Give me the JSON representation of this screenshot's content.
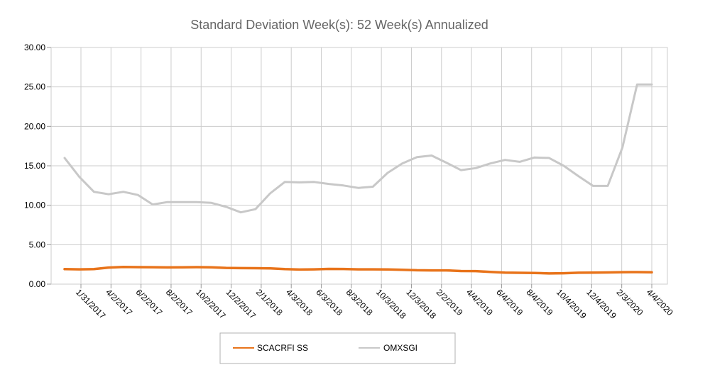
{
  "chart_data": {
    "type": "line",
    "title": "Standard Deviation Week(s): 52 Week(s) Annualized",
    "xlabel": "",
    "ylabel": "",
    "ylim": [
      0,
      30
    ],
    "yticks": [
      "0.00",
      "5.00",
      "10.00",
      "15.00",
      "20.00",
      "25.00",
      "30.00"
    ],
    "grid": true,
    "legend_position": "bottom",
    "x_tick_labels": [
      "1/31/2017",
      "4/2/2017",
      "6/2/2017",
      "8/2/2017",
      "10/2/2017",
      "12/2/2017",
      "2/1/2018",
      "4/3/2018",
      "6/3/2018",
      "8/3/2018",
      "10/3/2018",
      "12/3/2018",
      "2/2/2019",
      "4/4/2019",
      "6/4/2019",
      "8/4/2019",
      "10/4/2019",
      "12/4/2019",
      "2/3/2020",
      "4/4/2020"
    ],
    "series": [
      {
        "name": "SCACRFI SS",
        "color": "#e8731a",
        "values": [
          1.9,
          1.88,
          1.9,
          2.1,
          2.18,
          2.16,
          2.15,
          2.12,
          2.14,
          2.16,
          2.14,
          2.06,
          2.03,
          2.02,
          2.0,
          1.9,
          1.85,
          1.88,
          1.93,
          1.92,
          1.88,
          1.88,
          1.86,
          1.82,
          1.76,
          1.74,
          1.74,
          1.66,
          1.65,
          1.55,
          1.46,
          1.44,
          1.42,
          1.36,
          1.38,
          1.45,
          1.46,
          1.48,
          1.52,
          1.53,
          1.5
        ]
      },
      {
        "name": "OMXSGI",
        "color": "#c8c8c8",
        "values": [
          16.0,
          13.6,
          11.7,
          11.4,
          11.7,
          11.3,
          10.1,
          10.4,
          10.4,
          10.4,
          10.3,
          9.8,
          9.1,
          9.5,
          11.5,
          12.95,
          12.9,
          12.95,
          12.7,
          12.5,
          12.2,
          12.35,
          14.1,
          15.3,
          16.1,
          16.3,
          15.4,
          14.45,
          14.7,
          15.3,
          15.75,
          15.5,
          16.05,
          16.0,
          15.0,
          13.7,
          12.45,
          12.45,
          17.3,
          25.3,
          25.3
        ]
      }
    ]
  }
}
